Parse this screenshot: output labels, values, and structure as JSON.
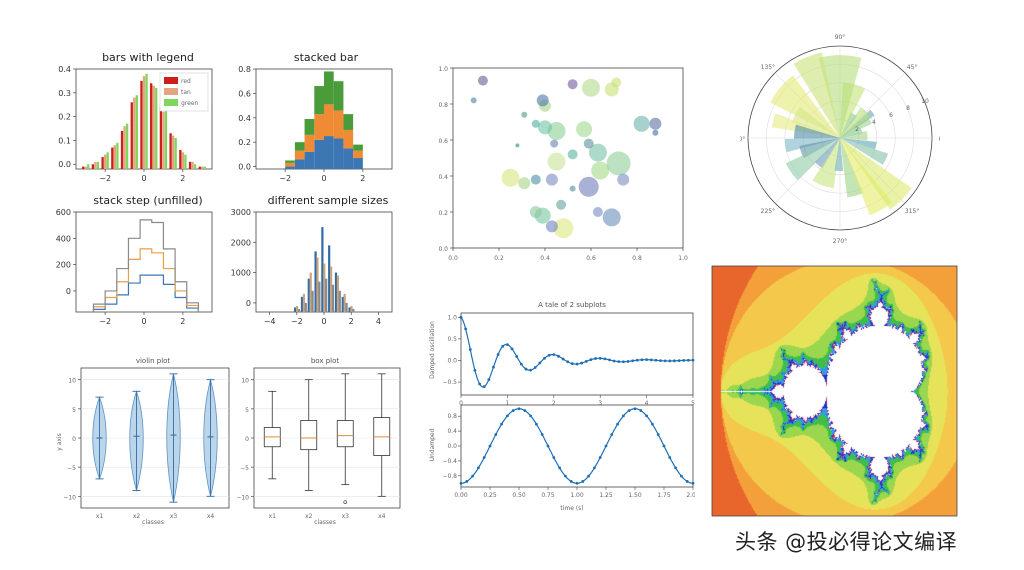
{
  "watermark": "头条 @投必得论文编译",
  "chart_data": [
    {
      "id": "bars-legend",
      "type": "bar",
      "title": "bars with legend",
      "xticks": [
        "−2",
        "0",
        "2"
      ],
      "yticks": [
        "0.0",
        "0.1",
        "0.2",
        "0.3",
        "0.4"
      ],
      "xlim": [
        -3.5,
        3.5
      ],
      "ylim": [
        0,
        0.42
      ],
      "legend": "top-right",
      "colors": [
        "#cc1f1a",
        "#e3a57e",
        "#7fd65e"
      ],
      "series": [
        {
          "name": "red",
          "values": [
            0.01,
            0.02,
            0.05,
            0.09,
            0.16,
            0.28,
            0.37,
            0.36,
            0.26,
            0.15,
            0.08,
            0.03,
            0.01
          ]
        },
        {
          "name": "tan",
          "values": [
            0.01,
            0.03,
            0.06,
            0.1,
            0.18,
            0.3,
            0.39,
            0.35,
            0.24,
            0.14,
            0.07,
            0.03,
            0.01
          ]
        },
        {
          "name": "green",
          "values": [
            0.02,
            0.03,
            0.07,
            0.11,
            0.19,
            0.31,
            0.4,
            0.34,
            0.25,
            0.13,
            0.06,
            0.02,
            0.01
          ]
        }
      ]
    },
    {
      "id": "stacked-bar",
      "type": "bar",
      "title": "stacked bar",
      "xticks": [
        "−2",
        "0",
        "2"
      ],
      "yticks": [
        "0.0",
        "0.2",
        "0.4",
        "0.6",
        "0.8"
      ],
      "xlim": [
        -3.5,
        3.5
      ],
      "ylim": [
        0,
        0.82
      ],
      "colors": [
        "#3c77b4",
        "#ef8a35",
        "#4a9c3a"
      ],
      "series": [
        {
          "name": "blue",
          "values": [
            0.02,
            0.08,
            0.14,
            0.24,
            0.27,
            0.25,
            0.17,
            0.09
          ]
        },
        {
          "name": "orange",
          "values": [
            0.03,
            0.07,
            0.14,
            0.21,
            0.26,
            0.23,
            0.15,
            0.06
          ]
        },
        {
          "name": "green",
          "values": [
            0.02,
            0.07,
            0.13,
            0.23,
            0.27,
            0.24,
            0.13,
            0.05
          ]
        }
      ]
    },
    {
      "id": "step-unfilled",
      "type": "line",
      "title": "stack step (unfilled)",
      "xticks": [
        "−2",
        "0",
        "2"
      ],
      "yticks": [
        "0",
        "200",
        "400",
        "600"
      ],
      "xlim": [
        -3.5,
        3.5
      ],
      "ylim": [
        0,
        760
      ],
      "edges": [
        -2.6,
        -2.0,
        -1.4,
        -0.8,
        -0.2,
        0.4,
        1.0,
        1.6,
        2.2,
        2.8
      ],
      "colors": [
        "#3c77b4",
        "#e69f4a",
        "#8a8a8a"
      ],
      "series": [
        {
          "name": "blue",
          "values": [
            20,
            60,
            130,
            220,
            280,
            280,
            210,
            110,
            30
          ]
        },
        {
          "name": "orange",
          "values": [
            40,
            110,
            230,
            400,
            480,
            450,
            330,
            160,
            50
          ]
        },
        {
          "name": "gray",
          "values": [
            60,
            160,
            330,
            560,
            700,
            680,
            480,
            230,
            70
          ]
        }
      ]
    },
    {
      "id": "different-sample-sizes",
      "type": "bar",
      "title": "different sample sizes",
      "xticks": [
        "−4",
        "−2",
        "0",
        "2",
        "4"
      ],
      "yticks": [
        "0",
        "1000",
        "2000",
        "3000"
      ],
      "xlim": [
        -5,
        5
      ],
      "ylim": [
        0,
        3300
      ],
      "colors": [
        "#2f6ca8",
        "#c9a57e",
        "#8a8a8a"
      ],
      "series": [
        {
          "name": "blue",
          "values": [
            0,
            150,
            500,
            1100,
            2000,
            2800,
            2200,
            1300,
            500,
            150,
            0
          ]
        },
        {
          "name": "tan",
          "values": [
            0,
            200,
            600,
            1300,
            1800,
            1600,
            1500,
            1200,
            600,
            200,
            0
          ]
        },
        {
          "name": "gray",
          "values": [
            0,
            100,
            300,
            700,
            1000,
            1100,
            900,
            700,
            300,
            100,
            0
          ]
        }
      ]
    },
    {
      "id": "violin",
      "type": "violin",
      "title": "violin plot",
      "xlabel": "classes",
      "ylabel": "y axis",
      "categories": [
        "x1",
        "x2",
        "x3",
        "x4"
      ],
      "yticks": [
        "−10",
        "−5",
        "0",
        "5",
        "10"
      ],
      "ylim": [
        -12,
        12
      ],
      "centers": [
        0,
        0.3,
        0.5,
        0.2
      ],
      "extents": [
        [
          -7,
          7
        ],
        [
          -9,
          8
        ],
        [
          -11,
          11
        ],
        [
          -10,
          10
        ]
      ]
    },
    {
      "id": "box",
      "type": "box",
      "title": "box plot",
      "xlabel": "classes",
      "categories": [
        "x1",
        "x2",
        "x3",
        "x4"
      ],
      "yticks": [
        "−10",
        "−5",
        "0",
        "5",
        "10"
      ],
      "ylim": [
        -12,
        12
      ],
      "boxes": [
        {
          "lo": -7,
          "q1": -1.5,
          "med": 0.2,
          "q3": 1.8,
          "hi": 8
        },
        {
          "lo": -9,
          "q1": -2,
          "med": 0,
          "q3": 3,
          "hi": 10
        },
        {
          "lo": -8,
          "q1": -1.5,
          "med": 0.4,
          "q3": 3,
          "hi": 11
        },
        {
          "lo": -10,
          "q1": -3,
          "med": 0.2,
          "q3": 3.5,
          "hi": 11
        }
      ],
      "outliers": [
        [
          2,
          -11
        ]
      ]
    },
    {
      "id": "scatter",
      "type": "scatter",
      "xticks": [
        "0.0",
        "0.2",
        "0.4",
        "0.6",
        "0.8",
        "1.0"
      ],
      "yticks": [
        "0.0",
        "0.2",
        "0.4",
        "0.6",
        "0.8",
        "1.0"
      ],
      "xlim": [
        0,
        1
      ],
      "ylim": [
        0,
        1
      ],
      "points": [
        [
          0.13,
          0.93,
          5,
          "#6b5a96"
        ],
        [
          0.4,
          0.79,
          6,
          "#a8d48a"
        ],
        [
          0.52,
          0.91,
          5,
          "#6f5a99"
        ],
        [
          0.6,
          0.89,
          9,
          "#b3da8a"
        ],
        [
          0.69,
          0.88,
          7,
          "#c8df74"
        ],
        [
          0.71,
          0.92,
          5,
          "#c6e377"
        ],
        [
          0.31,
          0.74,
          3,
          "#4a9a8a"
        ],
        [
          0.45,
          0.65,
          9,
          "#8bcf91"
        ],
        [
          0.4,
          0.67,
          7,
          "#6cc4a5"
        ],
        [
          0.36,
          0.69,
          4,
          "#4fb09a"
        ],
        [
          0.88,
          0.69,
          6,
          "#5a6fa5"
        ],
        [
          0.82,
          0.69,
          8,
          "#6ab3ac"
        ],
        [
          0.88,
          0.64,
          3,
          "#3e6ea6"
        ],
        [
          0.57,
          0.66,
          8,
          "#a0d890"
        ],
        [
          0.63,
          0.53,
          9,
          "#77c2a8"
        ],
        [
          0.59,
          0.58,
          5,
          "#5c8f9c"
        ],
        [
          0.44,
          0.58,
          4,
          "#6a7fb8"
        ],
        [
          0.28,
          0.57,
          2,
          "#2d8a8a"
        ],
        [
          0.25,
          0.39,
          9,
          "#d8e67d"
        ],
        [
          0.45,
          0.48,
          9,
          "#c8e29a"
        ],
        [
          0.43,
          0.38,
          6,
          "#7b8bc2"
        ],
        [
          0.36,
          0.38,
          5,
          "#4d8fa3"
        ],
        [
          0.31,
          0.36,
          6,
          "#a3d587"
        ],
        [
          0.52,
          0.52,
          5,
          "#5bb29e"
        ],
        [
          0.64,
          0.43,
          9,
          "#a3d887"
        ],
        [
          0.72,
          0.47,
          12,
          "#8fcf97"
        ],
        [
          0.59,
          0.34,
          10,
          "#6f7db8"
        ],
        [
          0.74,
          0.38,
          6,
          "#7c8dc4"
        ],
        [
          0.52,
          0.33,
          3,
          "#4f8aa0"
        ],
        [
          0.39,
          0.18,
          8,
          "#77c6a0"
        ],
        [
          0.47,
          0.24,
          5,
          "#66a29b"
        ],
        [
          0.48,
          0.11,
          10,
          "#dce77e"
        ],
        [
          0.36,
          0.2,
          6,
          "#8bc79b"
        ],
        [
          0.43,
          0.12,
          6,
          "#6e86c3"
        ],
        [
          0.69,
          0.17,
          9,
          "#6b8fba"
        ],
        [
          0.63,
          0.2,
          5,
          "#7888c1"
        ],
        [
          0.09,
          0.82,
          3,
          "#4f7ea5"
        ],
        [
          0.39,
          0.82,
          6,
          "#4b77a6"
        ]
      ]
    },
    {
      "id": "polar-bar",
      "type": "bar",
      "polar": true,
      "angle_labels": [
        "0°",
        "45°",
        "90°",
        "135°",
        "180°",
        "225°",
        "270°",
        "315°"
      ],
      "radial_labels": [
        "2",
        "4",
        "6",
        "8",
        "10"
      ],
      "rmax": 10,
      "bars": [
        [
          20,
          2.5,
          18,
          "#7fc8a0"
        ],
        [
          30,
          3.8,
          12,
          "#9ad68a"
        ],
        [
          38,
          4.5,
          10,
          "#6aa6b6"
        ],
        [
          45,
          4.0,
          22,
          "#b8e07a"
        ],
        [
          60,
          3.0,
          15,
          "#8ac899"
        ],
        [
          75,
          6.0,
          24,
          "#c4e377"
        ],
        [
          90,
          9.0,
          30,
          "#b5de7c"
        ],
        [
          112,
          9.5,
          20,
          "#c9e37a"
        ],
        [
          140,
          8.5,
          26,
          "#e2ea76"
        ],
        [
          152,
          5.5,
          20,
          "#d6e687"
        ],
        [
          165,
          7.5,
          12,
          "#e4eb82"
        ],
        [
          172,
          5.0,
          18,
          "#4f8ba8"
        ],
        [
          188,
          6.0,
          14,
          "#7db5c5"
        ],
        [
          200,
          4.5,
          18,
          "#5d96a8"
        ],
        [
          215,
          6.5,
          20,
          "#91cca6"
        ],
        [
          232,
          3.8,
          16,
          "#6d97bd"
        ],
        [
          250,
          5.5,
          26,
          "#c6e481"
        ],
        [
          268,
          3.6,
          15,
          "#6faeb8"
        ],
        [
          285,
          6.5,
          16,
          "#9bd486"
        ],
        [
          300,
          9.0,
          18,
          "#e4ec67"
        ],
        [
          315,
          9.5,
          20,
          "#dbe96a"
        ],
        [
          335,
          5.5,
          14,
          "#85c2a6"
        ],
        [
          348,
          4.0,
          12,
          "#5fa3b1"
        ],
        [
          5,
          3.0,
          20,
          "#a6d689"
        ]
      ]
    },
    {
      "id": "two-subplots",
      "type": "line",
      "title": "A tale of 2 subplots",
      "subplots": [
        {
          "ylabel": "Damped oscillation",
          "yticks": [
            "1.0",
            "0.5",
            "0.0",
            "−0.5"
          ],
          "xticks": [
            "0",
            "1",
            "2",
            "3",
            "4",
            "5"
          ],
          "xlim": [
            0,
            5
          ],
          "ylim": [
            -0.8,
            1.1
          ],
          "function": "cos(2*pi*t)*exp(-t)",
          "markers": true
        },
        {
          "ylabel": "Undamped",
          "yticks": [
            "0.8",
            "0.4",
            "0.0",
            "−0.4",
            "−0.8"
          ],
          "xticks": [
            "0.00",
            "0.25",
            "0.50",
            "0.75",
            "1.00",
            "1.25",
            "1.50",
            "1.75",
            "2.00"
          ],
          "xlabel": "time (s)",
          "xlim": [
            0,
            2
          ],
          "ylim": [
            -1.1,
            1.1
          ],
          "function": "cos(2*pi*t + pi)",
          "markers": true
        }
      ]
    },
    {
      "id": "mandelbrot",
      "type": "heatmap",
      "title": "",
      "xlim": [
        -2.1,
        0.8
      ],
      "ylim": [
        -1.25,
        1.25
      ],
      "colormap": [
        "#d12a1b",
        "#e8662b",
        "#f4a03a",
        "#f4c84a",
        "#e6e35a",
        "#9ad64e",
        "#3fbf4a",
        "#2f9de0",
        "#1a2fd0",
        "#8a2a8a",
        "#e07070",
        "#ffffff"
      ]
    }
  ]
}
